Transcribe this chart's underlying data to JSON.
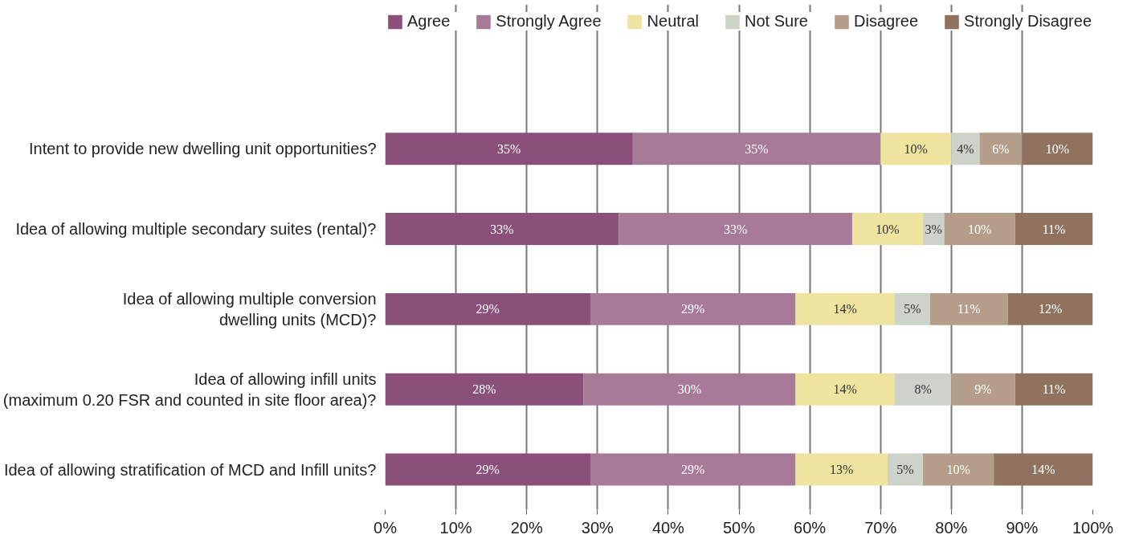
{
  "chart_data": {
    "type": "bar",
    "orientation": "horizontal",
    "stacked": true,
    "categories": [
      "Intent to provide new dwelling unit opportunities?",
      "Idea of allowing multiple secondary suites (rental)?",
      "Idea of allowing multiple conversion\ndwelling units (MCD)?",
      "Idea of allowing infill units\n(maximum 0.20 FSR and counted in site floor area)?",
      "Idea of allowing stratification of MCD and Infill units?"
    ],
    "series": [
      {
        "name": "Agree",
        "color": "#8a507a",
        "values": [
          35,
          33,
          29,
          28,
          29
        ],
        "value_labels": [
          "35%",
          "33%",
          "29%",
          "28%",
          "29%"
        ]
      },
      {
        "name": "Strongly Agree",
        "color": "#a77b98",
        "values": [
          35,
          33,
          29,
          30,
          29
        ],
        "value_labels": [
          "35%",
          "33%",
          "29%",
          "30%",
          "29%"
        ]
      },
      {
        "name": "Neutral",
        "color": "#efe3a0",
        "values": [
          10,
          10,
          14,
          14,
          13
        ],
        "value_labels": [
          "10%",
          "10%",
          "14%",
          "14%",
          "13%"
        ]
      },
      {
        "name": "Not Sure",
        "color": "#cdd3cb",
        "values": [
          4,
          3,
          5,
          8,
          5
        ],
        "value_labels": [
          "4%",
          "3%",
          "5%",
          "8%",
          "5%"
        ]
      },
      {
        "name": "Disagree",
        "color": "#b49e8a",
        "values": [
          6,
          10,
          11,
          9,
          10
        ],
        "value_labels": [
          "6%",
          "10%",
          "11%",
          "9%",
          "10%"
        ]
      },
      {
        "name": "Strongly Disagree",
        "color": "#8f735f",
        "values": [
          10,
          11,
          12,
          11,
          14
        ],
        "value_labels": [
          "10%",
          "11%",
          "12%",
          "11%",
          "14%"
        ]
      }
    ],
    "xlim": [
      0,
      100
    ],
    "xticks": [
      {
        "value": 0,
        "label": "0%"
      },
      {
        "value": 10,
        "label": "10%"
      },
      {
        "value": 20,
        "label": "20%"
      },
      {
        "value": 30,
        "label": "30%"
      },
      {
        "value": 40,
        "label": "40%"
      },
      {
        "value": 50,
        "label": "50%"
      },
      {
        "value": 60,
        "label": "60%"
      },
      {
        "value": 70,
        "label": "70%"
      },
      {
        "value": 80,
        "label": "80%"
      },
      {
        "value": 90,
        "label": "90%"
      },
      {
        "value": 100,
        "label": "100%"
      }
    ],
    "grid": "x",
    "legend": "top"
  }
}
